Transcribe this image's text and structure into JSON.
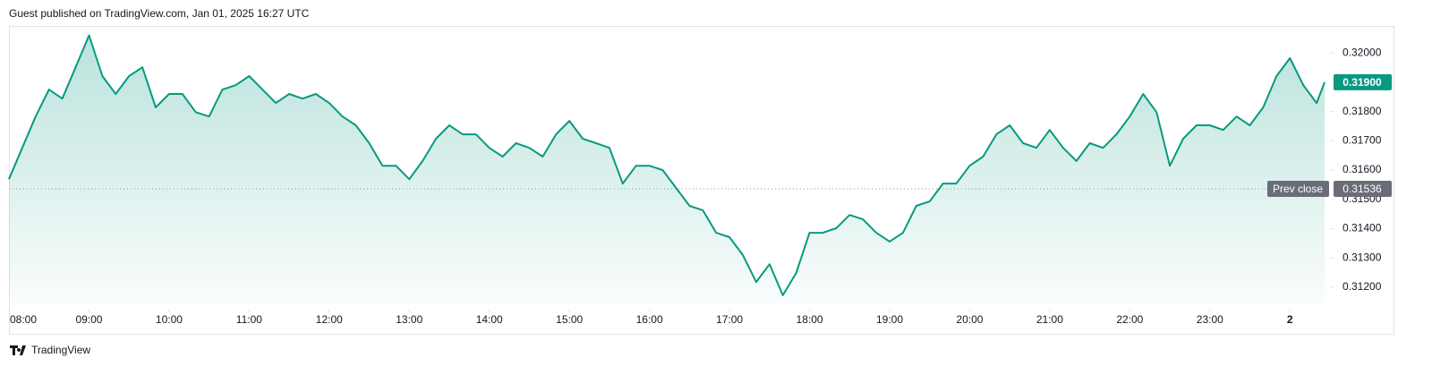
{
  "header": {
    "text": "Guest published on TradingView.com, Jan 01, 2025 16:27 UTC"
  },
  "footer": {
    "brand": "TradingView"
  },
  "chart_data": {
    "type": "area",
    "color": "#089981",
    "x": [
      "2025-01-01T08:00",
      "2025-01-01T08:10",
      "2025-01-01T08:20",
      "2025-01-01T08:30",
      "2025-01-01T08:40",
      "2025-01-01T08:50",
      "2025-01-01T09:00",
      "2025-01-01T09:10",
      "2025-01-01T09:20",
      "2025-01-01T09:30",
      "2025-01-01T09:40",
      "2025-01-01T09:50",
      "2025-01-01T10:00",
      "2025-01-01T10:10",
      "2025-01-01T10:20",
      "2025-01-01T10:30",
      "2025-01-01T10:40",
      "2025-01-01T10:50",
      "2025-01-01T11:00",
      "2025-01-01T11:10",
      "2025-01-01T11:20",
      "2025-01-01T11:30",
      "2025-01-01T11:40",
      "2025-01-01T11:50",
      "2025-01-01T12:00",
      "2025-01-01T12:10",
      "2025-01-01T12:20",
      "2025-01-01T12:30",
      "2025-01-01T12:40",
      "2025-01-01T12:50",
      "2025-01-01T13:00",
      "2025-01-01T13:10",
      "2025-01-01T13:20",
      "2025-01-01T13:30",
      "2025-01-01T13:40",
      "2025-01-01T13:50",
      "2025-01-01T14:00",
      "2025-01-01T14:10",
      "2025-01-01T14:20",
      "2025-01-01T14:30",
      "2025-01-01T14:40",
      "2025-01-01T14:50",
      "2025-01-01T15:00",
      "2025-01-01T15:10",
      "2025-01-01T15:20",
      "2025-01-01T15:30",
      "2025-01-01T15:40",
      "2025-01-01T15:50",
      "2025-01-01T16:00",
      "2025-01-01T16:10",
      "2025-01-01T16:20",
      "2025-01-01T16:30",
      "2025-01-01T16:40",
      "2025-01-01T16:50",
      "2025-01-01T17:00",
      "2025-01-01T17:10",
      "2025-01-01T17:20",
      "2025-01-01T17:30",
      "2025-01-01T17:40",
      "2025-01-01T17:50",
      "2025-01-01T18:00",
      "2025-01-01T18:10",
      "2025-01-01T18:20",
      "2025-01-01T18:30",
      "2025-01-01T18:40",
      "2025-01-01T18:50",
      "2025-01-01T19:00",
      "2025-01-01T19:10",
      "2025-01-01T19:20",
      "2025-01-01T19:30",
      "2025-01-01T19:40",
      "2025-01-01T19:50",
      "2025-01-01T20:00",
      "2025-01-01T20:10",
      "2025-01-01T20:20",
      "2025-01-01T20:30",
      "2025-01-01T20:40",
      "2025-01-01T20:50",
      "2025-01-01T21:00",
      "2025-01-01T21:10",
      "2025-01-01T21:20",
      "2025-01-01T21:30",
      "2025-01-01T21:40",
      "2025-01-01T21:50",
      "2025-01-01T22:00",
      "2025-01-01T22:10",
      "2025-01-01T22:20",
      "2025-01-01T22:30",
      "2025-01-01T22:40",
      "2025-01-01T22:50",
      "2025-01-01T23:00",
      "2025-01-01T23:10",
      "2025-01-01T23:20",
      "2025-01-01T23:30",
      "2025-01-01T23:40",
      "2025-01-01T23:50",
      "2025-01-02T00:00",
      "2025-01-02T00:10",
      "2025-01-02T00:20",
      "2025-01-02T00:26"
    ],
    "values": [
      0.31569,
      0.31676,
      0.31783,
      0.31875,
      0.31844,
      0.31951,
      0.3206,
      0.31921,
      0.3186,
      0.31921,
      0.31951,
      0.31814,
      0.3186,
      0.3186,
      0.31798,
      0.31783,
      0.31875,
      0.3189,
      0.31921,
      0.31875,
      0.31829,
      0.3186,
      0.31844,
      0.3186,
      0.31829,
      0.31783,
      0.31753,
      0.31692,
      0.31615,
      0.31615,
      0.31569,
      0.31631,
      0.31707,
      0.31753,
      0.31722,
      0.31722,
      0.31676,
      0.31646,
      0.31692,
      0.31676,
      0.31646,
      0.31722,
      0.31768,
      0.31707,
      0.31692,
      0.31676,
      0.31554,
      0.31615,
      0.31615,
      0.316,
      0.31539,
      0.31478,
      0.31463,
      0.31386,
      0.31371,
      0.3131,
      0.31218,
      0.31279,
      0.31173,
      0.31249,
      0.31386,
      0.31386,
      0.31402,
      0.31447,
      0.31432,
      0.31386,
      0.31356,
      0.31386,
      0.31478,
      0.31493,
      0.31554,
      0.31554,
      0.31615,
      0.31646,
      0.31722,
      0.31753,
      0.31692,
      0.31676,
      0.31737,
      0.31676,
      0.31631,
      0.31692,
      0.31676,
      0.31722,
      0.31783,
      0.3186,
      0.31798,
      0.31615,
      0.31707,
      0.31753,
      0.31753,
      0.31737,
      0.31783,
      0.31753,
      0.31814,
      0.31921,
      0.31982,
      0.3189,
      0.31829,
      0.319
    ],
    "xlim": [
      "2025-01-01T08:00",
      "2025-01-02T00:28"
    ],
    "xticks": [
      {
        "value": "2025-01-01T08:00",
        "label": "08:00"
      },
      {
        "value": "2025-01-01T09:00",
        "label": "09:00"
      },
      {
        "value": "2025-01-01T10:00",
        "label": "10:00"
      },
      {
        "value": "2025-01-01T11:00",
        "label": "11:00"
      },
      {
        "value": "2025-01-01T12:00",
        "label": "12:00"
      },
      {
        "value": "2025-01-01T13:00",
        "label": "13:00"
      },
      {
        "value": "2025-01-01T14:00",
        "label": "14:00"
      },
      {
        "value": "2025-01-01T15:00",
        "label": "15:00"
      },
      {
        "value": "2025-01-01T16:00",
        "label": "16:00"
      },
      {
        "value": "2025-01-01T17:00",
        "label": "17:00"
      },
      {
        "value": "2025-01-01T18:00",
        "label": "18:00"
      },
      {
        "value": "2025-01-01T19:00",
        "label": "19:00"
      },
      {
        "value": "2025-01-01T20:00",
        "label": "20:00"
      },
      {
        "value": "2025-01-01T21:00",
        "label": "21:00"
      },
      {
        "value": "2025-01-01T22:00",
        "label": "22:00"
      },
      {
        "value": "2025-01-01T23:00",
        "label": "23:00"
      },
      {
        "value": "2025-01-02T00:00",
        "label": "2"
      }
    ],
    "ylim": [
      0.31142,
      0.32089
    ],
    "yticks": [
      {
        "value": 0.312,
        "label": "0.31200"
      },
      {
        "value": 0.313,
        "label": "0.31300"
      },
      {
        "value": 0.314,
        "label": "0.31400"
      },
      {
        "value": 0.315,
        "label": "0.31500"
      },
      {
        "value": 0.316,
        "label": "0.31600"
      },
      {
        "value": 0.317,
        "label": "0.31700"
      },
      {
        "value": 0.318,
        "label": "0.31800"
      },
      {
        "value": 0.32,
        "label": "0.32000"
      }
    ],
    "last_price": {
      "value": 0.319,
      "label": "0.31900",
      "color": "#089981"
    },
    "prev_close": {
      "name": "Prev close",
      "value": 0.31536,
      "value_label": "0.31536",
      "color": "#6a6d78"
    }
  }
}
